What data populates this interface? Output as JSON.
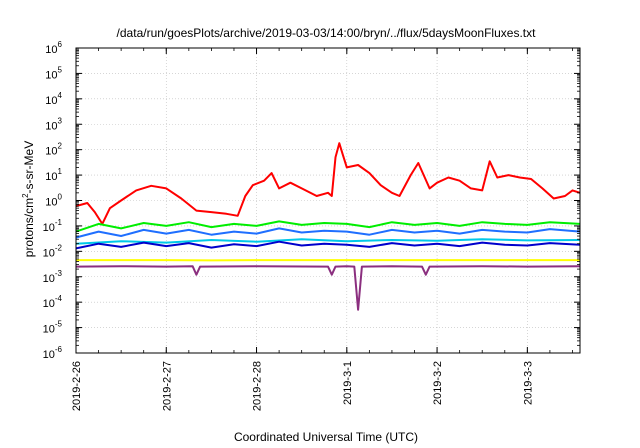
{
  "chart_data": {
    "type": "line",
    "title": "/data/run/goesPlots/archive/2019-03-03/14:00/bryn/../flux/5daysMoonFluxes.txt",
    "xlabel": "Coordinated Universal Time (UTC)",
    "ylabel_main": "protons/cm",
    "ylabel_sup": "2",
    "ylabel_rest": "-s-sr-MeV",
    "x_scale": "time",
    "x_range": [
      "2019-02-26T00:00",
      "2019-03-03T14:00"
    ],
    "x_ticks": [
      "2019-2-26",
      "2019-2-27",
      "2019-2-28",
      "2019-3-1",
      "2019-3-2",
      "2019-3-3"
    ],
    "y_scale": "log",
    "ylim": [
      1e-06,
      1000000.0
    ],
    "y_ticks": [
      {
        "base": "10",
        "exp": "-6"
      },
      {
        "base": "10",
        "exp": "-5"
      },
      {
        "base": "10",
        "exp": "-4"
      },
      {
        "base": "10",
        "exp": "-3"
      },
      {
        "base": "10",
        "exp": "-2"
      },
      {
        "base": "10",
        "exp": "-1"
      },
      {
        "base": "10",
        "exp": "0"
      },
      {
        "base": "10",
        "exp": "1"
      },
      {
        "base": "10",
        "exp": "2"
      },
      {
        "base": "10",
        "exp": "3"
      },
      {
        "base": "10",
        "exp": "4"
      },
      {
        "base": "10",
        "exp": "5"
      },
      {
        "base": "10",
        "exp": "6"
      }
    ],
    "grid": true,
    "legend": "none",
    "series": [
      {
        "color": "#ff0000",
        "points": [
          [
            "2019-02-26T00:00",
            0.6
          ],
          [
            "2019-02-26T03:00",
            0.8
          ],
          [
            "2019-02-26T05:00",
            0.35
          ],
          [
            "2019-02-26T07:00",
            0.12
          ],
          [
            "2019-02-26T09:00",
            0.5
          ],
          [
            "2019-02-26T12:00",
            1.0
          ],
          [
            "2019-02-26T16:00",
            2.5
          ],
          [
            "2019-02-26T20:00",
            3.8
          ],
          [
            "2019-02-27T00:00",
            3.0
          ],
          [
            "2019-02-27T04:00",
            1.2
          ],
          [
            "2019-02-27T08:00",
            0.4
          ],
          [
            "2019-02-27T12:00",
            0.35
          ],
          [
            "2019-02-27T16:00",
            0.3
          ],
          [
            "2019-02-27T19:00",
            0.25
          ],
          [
            "2019-02-27T21:00",
            1.5
          ],
          [
            "2019-02-27T23:00",
            4.0
          ],
          [
            "2019-02-28T02:00",
            6.0
          ],
          [
            "2019-02-28T04:00",
            12.0
          ],
          [
            "2019-02-28T06:00",
            3.0
          ],
          [
            "2019-02-28T09:00",
            5.0
          ],
          [
            "2019-02-28T12:00",
            3.0
          ],
          [
            "2019-02-28T16:00",
            1.5
          ],
          [
            "2019-02-28T19:00",
            2.0
          ],
          [
            "2019-02-28T20:00",
            1.5
          ],
          [
            "2019-02-28T21:00",
            50.0
          ],
          [
            "2019-02-28T22:00",
            180.0
          ],
          [
            "2019-02-28T23:00",
            60.0
          ],
          [
            "2019-03-01T00:00",
            20.0
          ],
          [
            "2019-03-01T03:00",
            25.0
          ],
          [
            "2019-03-01T06:00",
            12.0
          ],
          [
            "2019-03-01T09:00",
            4.0
          ],
          [
            "2019-03-01T12:00",
            2.0
          ],
          [
            "2019-03-01T14:00",
            1.5
          ],
          [
            "2019-03-01T17:00",
            10.0
          ],
          [
            "2019-03-01T19:00",
            30.0
          ],
          [
            "2019-03-01T22:00",
            3.0
          ],
          [
            "2019-03-02T00:00",
            5.0
          ],
          [
            "2019-03-02T03:00",
            8.0
          ],
          [
            "2019-03-02T06:00",
            6.0
          ],
          [
            "2019-03-02T09:00",
            3.0
          ],
          [
            "2019-03-02T12:00",
            2.5
          ],
          [
            "2019-03-02T14:00",
            35.0
          ],
          [
            "2019-03-02T16:00",
            8.0
          ],
          [
            "2019-03-02T19:00",
            10.0
          ],
          [
            "2019-03-02T22:00",
            8.0
          ],
          [
            "2019-03-03T01:00",
            7.0
          ],
          [
            "2019-03-03T04:00",
            3.0
          ],
          [
            "2019-03-03T07:00",
            1.2
          ],
          [
            "2019-03-03T10:00",
            1.5
          ],
          [
            "2019-03-03T12:00",
            2.5
          ],
          [
            "2019-03-03T14:00",
            2.0
          ]
        ]
      },
      {
        "color": "#00ee00",
        "points": [
          [
            "2019-02-26T00:00",
            0.06
          ],
          [
            "2019-02-26T06:00",
            0.12
          ],
          [
            "2019-02-26T12:00",
            0.08
          ],
          [
            "2019-02-26T18:00",
            0.13
          ],
          [
            "2019-02-27T00:00",
            0.1
          ],
          [
            "2019-02-27T06:00",
            0.14
          ],
          [
            "2019-02-27T12:00",
            0.09
          ],
          [
            "2019-02-27T18:00",
            0.12
          ],
          [
            "2019-02-28T00:00",
            0.1
          ],
          [
            "2019-02-28T06:00",
            0.15
          ],
          [
            "2019-02-28T12:00",
            0.11
          ],
          [
            "2019-02-28T18:00",
            0.13
          ],
          [
            "2019-03-01T00:00",
            0.12
          ],
          [
            "2019-03-01T06:00",
            0.09
          ],
          [
            "2019-03-01T12:00",
            0.14
          ],
          [
            "2019-03-01T18:00",
            0.11
          ],
          [
            "2019-03-02T00:00",
            0.13
          ],
          [
            "2019-03-02T06:00",
            0.1
          ],
          [
            "2019-03-02T12:00",
            0.14
          ],
          [
            "2019-03-02T18:00",
            0.12
          ],
          [
            "2019-03-03T00:00",
            0.11
          ],
          [
            "2019-03-03T06:00",
            0.14
          ],
          [
            "2019-03-03T14:00",
            0.12
          ]
        ]
      },
      {
        "color": "#1f6fff",
        "points": [
          [
            "2019-02-26T00:00",
            0.035
          ],
          [
            "2019-02-26T06:00",
            0.06
          ],
          [
            "2019-02-26T12:00",
            0.04
          ],
          [
            "2019-02-26T18:00",
            0.07
          ],
          [
            "2019-02-27T00:00",
            0.05
          ],
          [
            "2019-02-27T06:00",
            0.07
          ],
          [
            "2019-02-27T12:00",
            0.045
          ],
          [
            "2019-02-27T18:00",
            0.06
          ],
          [
            "2019-02-28T00:00",
            0.05
          ],
          [
            "2019-02-28T06:00",
            0.08
          ],
          [
            "2019-02-28T12:00",
            0.055
          ],
          [
            "2019-02-28T18:00",
            0.065
          ],
          [
            "2019-03-01T00:00",
            0.06
          ],
          [
            "2019-03-01T06:00",
            0.045
          ],
          [
            "2019-03-01T12:00",
            0.07
          ],
          [
            "2019-03-01T18:00",
            0.055
          ],
          [
            "2019-03-02T00:00",
            0.065
          ],
          [
            "2019-03-02T06:00",
            0.05
          ],
          [
            "2019-03-02T12:00",
            0.07
          ],
          [
            "2019-03-02T18:00",
            0.06
          ],
          [
            "2019-03-03T00:00",
            0.055
          ],
          [
            "2019-03-03T06:00",
            0.075
          ],
          [
            "2019-03-03T14:00",
            0.06
          ]
        ]
      },
      {
        "color": "#00c8e8",
        "points": [
          [
            "2019-02-26T00:00",
            0.02
          ],
          [
            "2019-02-26T12:00",
            0.025
          ],
          [
            "2019-02-27T00:00",
            0.022
          ],
          [
            "2019-02-27T12:00",
            0.028
          ],
          [
            "2019-02-28T00:00",
            0.024
          ],
          [
            "2019-02-28T12:00",
            0.03
          ],
          [
            "2019-03-01T00:00",
            0.025
          ],
          [
            "2019-03-01T12:00",
            0.028
          ],
          [
            "2019-03-02T00:00",
            0.026
          ],
          [
            "2019-03-02T12:00",
            0.03
          ],
          [
            "2019-03-03T00:00",
            0.027
          ],
          [
            "2019-03-03T14:00",
            0.028
          ]
        ]
      },
      {
        "color": "#0000cc",
        "points": [
          [
            "2019-02-26T00:00",
            0.013
          ],
          [
            "2019-02-26T06:00",
            0.02
          ],
          [
            "2019-02-26T12:00",
            0.015
          ],
          [
            "2019-02-26T18:00",
            0.022
          ],
          [
            "2019-02-27T00:00",
            0.016
          ],
          [
            "2019-02-27T06:00",
            0.021
          ],
          [
            "2019-02-27T12:00",
            0.014
          ],
          [
            "2019-02-27T18:00",
            0.019
          ],
          [
            "2019-02-28T00:00",
            0.016
          ],
          [
            "2019-02-28T06:00",
            0.024
          ],
          [
            "2019-02-28T12:00",
            0.017
          ],
          [
            "2019-02-28T18:00",
            0.02
          ],
          [
            "2019-03-01T00:00",
            0.018
          ],
          [
            "2019-03-01T06:00",
            0.015
          ],
          [
            "2019-03-01T12:00",
            0.021
          ],
          [
            "2019-03-01T18:00",
            0.017
          ],
          [
            "2019-03-02T00:00",
            0.02
          ],
          [
            "2019-03-02T06:00",
            0.016
          ],
          [
            "2019-03-02T12:00",
            0.022
          ],
          [
            "2019-03-02T18:00",
            0.018
          ],
          [
            "2019-03-03T00:00",
            0.017
          ],
          [
            "2019-03-03T06:00",
            0.021
          ],
          [
            "2019-03-03T14:00",
            0.018
          ]
        ]
      },
      {
        "color": "#ffff00",
        "points": [
          [
            "2019-02-26T00:00",
            0.0045
          ],
          [
            "2019-02-27T00:00",
            0.0045
          ],
          [
            "2019-02-27T12:00",
            0.0044
          ],
          [
            "2019-02-28T00:00",
            0.0045
          ],
          [
            "2019-03-01T00:00",
            0.0045
          ],
          [
            "2019-03-02T00:00",
            0.0045
          ],
          [
            "2019-03-03T00:00",
            0.0045
          ],
          [
            "2019-03-03T14:00",
            0.0045
          ]
        ]
      },
      {
        "color": "#8b2f7f",
        "points": [
          [
            "2019-02-26T00:00",
            0.0025
          ],
          [
            "2019-02-26T12:00",
            0.0026
          ],
          [
            "2019-02-27T00:00",
            0.0025
          ],
          [
            "2019-02-27T07:00",
            0.0026
          ],
          [
            "2019-02-27T08:00",
            0.0012
          ],
          [
            "2019-02-27T09:00",
            0.0025
          ],
          [
            "2019-02-28T00:00",
            0.0026
          ],
          [
            "2019-02-28T19:00",
            0.0025
          ],
          [
            "2019-02-28T20:00",
            0.0012
          ],
          [
            "2019-02-28T21:00",
            0.0025
          ],
          [
            "2019-03-01T00:00",
            0.0026
          ],
          [
            "2019-03-01T02:00",
            0.0025
          ],
          [
            "2019-03-01T03:00",
            5e-05
          ],
          [
            "2019-03-01T04:00",
            0.0025
          ],
          [
            "2019-03-01T12:00",
            0.0026
          ],
          [
            "2019-03-01T20:00",
            0.0025
          ],
          [
            "2019-03-01T21:00",
            0.0012
          ],
          [
            "2019-03-01T22:00",
            0.0025
          ],
          [
            "2019-03-02T12:00",
            0.0026
          ],
          [
            "2019-03-03T00:00",
            0.0025
          ],
          [
            "2019-03-03T14:00",
            0.0026
          ]
        ]
      }
    ]
  }
}
